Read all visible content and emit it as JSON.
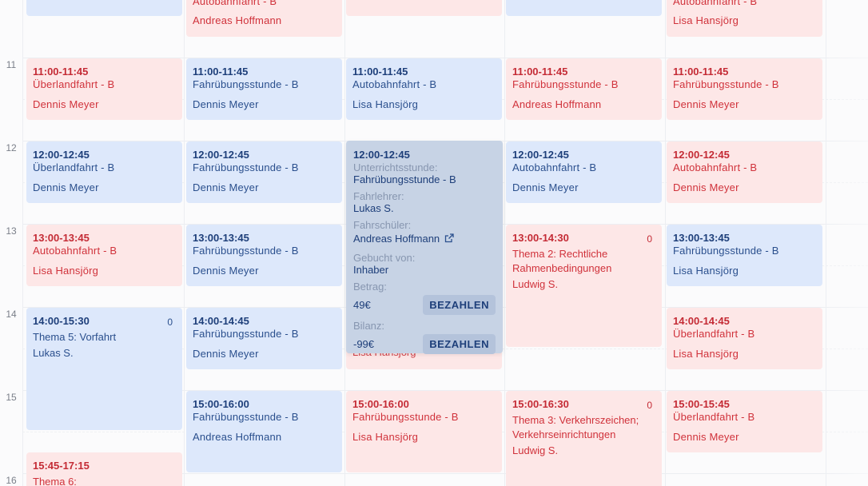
{
  "hours": [
    "11",
    "12",
    "13",
    "14",
    "15",
    "16"
  ],
  "events": {
    "top_col2": {
      "type": "Autobahnfahrt - B",
      "person": "Andreas Hoffmann"
    },
    "top_col5": {
      "type": "Autobahnfahrt - B",
      "person": "Lisa Hansjörg"
    },
    "c1_11": {
      "time": "11:00-11:45",
      "type": "Überlandfahrt - B",
      "person": "Dennis Meyer"
    },
    "c2_11": {
      "time": "11:00-11:45",
      "type": "Fahrübungsstunde - B",
      "person": "Dennis Meyer"
    },
    "c3_11": {
      "time": "11:00-11:45",
      "type": "Autobahnfahrt - B",
      "person": "Lisa Hansjörg"
    },
    "c4_11": {
      "time": "11:00-11:45",
      "type": "Fahrübungsstunde - B",
      "person": "Andreas Hoffmann"
    },
    "c5_11": {
      "time": "11:00-11:45",
      "type": "Fahrübungsstunde - B",
      "person": "Dennis Meyer"
    },
    "c1_12": {
      "time": "12:00-12:45",
      "type": "Überlandfahrt - B",
      "person": "Dennis Meyer"
    },
    "c2_12": {
      "time": "12:00-12:45",
      "type": "Fahrübungsstunde - B",
      "person": "Dennis Meyer"
    },
    "c4_12": {
      "time": "12:00-12:45",
      "type": "Autobahnfahrt - B",
      "person": "Dennis Meyer"
    },
    "c5_12": {
      "time": "12:00-12:45",
      "type": "Autobahnfahrt - B",
      "person": "Dennis Meyer"
    },
    "c1_13": {
      "time": "13:00-13:45",
      "type": "Autobahnfahrt - B",
      "person": "Lisa Hansjörg"
    },
    "c2_13": {
      "time": "13:00-13:45",
      "type": "Fahrübungsstunde - B",
      "person": "Dennis Meyer"
    },
    "c4_13": {
      "time": "13:00-14:30",
      "count": "0",
      "theme_line1": "Thema 2: Rechtliche",
      "theme_line2": "Rahmenbedingungen",
      "instructor": "Ludwig S."
    },
    "c5_13": {
      "time": "13:00-13:45",
      "type": "Fahrübungsstunde - B",
      "person": "Lisa Hansjörg"
    },
    "c1_14": {
      "time": "14:00-15:30",
      "count": "0",
      "theme": "Thema 5: Vorfahrt",
      "instructor": "Lukas S."
    },
    "c2_14": {
      "time": "14:00-14:45",
      "type": "Fahrübungsstunde - B",
      "person": "Dennis Meyer"
    },
    "c3_14_under": {
      "person": "Lisa Hansjörg"
    },
    "c5_14": {
      "time": "14:00-14:45",
      "type": "Überlandfahrt - B",
      "person": "Lisa Hansjörg"
    },
    "c2_15": {
      "time": "15:00-16:00",
      "type": "Fahrübungsstunde - B",
      "person": "Andreas Hoffmann"
    },
    "c3_15": {
      "time": "15:00-16:00",
      "type": "Fahrübungsstunde - B",
      "person": "Lisa Hansjörg"
    },
    "c4_15": {
      "time": "15:00-16:30",
      "count": "0",
      "theme_line1": "Thema 3: Verkehrszeichen;",
      "theme_line2": "Verkehrseinrichtungen",
      "instructor": "Ludwig S."
    },
    "c5_15": {
      "time": "15:00-15:45",
      "type": "Überlandfahrt - B",
      "person": "Dennis Meyer"
    },
    "c1_1545": {
      "time": "15:45-17:15",
      "theme": "Thema 6:"
    }
  },
  "popup": {
    "time": "12:00-12:45",
    "lesson_label": "Unterrichtsstunde:",
    "lesson_value": "Fahrübungsstunde - B",
    "teacher_label": "Fahrlehrer:",
    "teacher_value": "Lukas S.",
    "student_label": "Fahrschüler:",
    "student_value": "Andreas Hoffmann",
    "booked_label": "Gebucht von:",
    "booked_value": "Inhaber",
    "amount_label": "Betrag:",
    "amount_value": "49€",
    "balance_label": "Bilanz:",
    "balance_value": "-99€",
    "pay_label": "BEZAHLEN"
  },
  "colors": {
    "red_bg": "#fde7e7",
    "red_text": "#d0323b",
    "blue_bg": "#dde8fb",
    "blue_text": "#2a4f8d",
    "popup_bg": "#c7d3e5"
  }
}
